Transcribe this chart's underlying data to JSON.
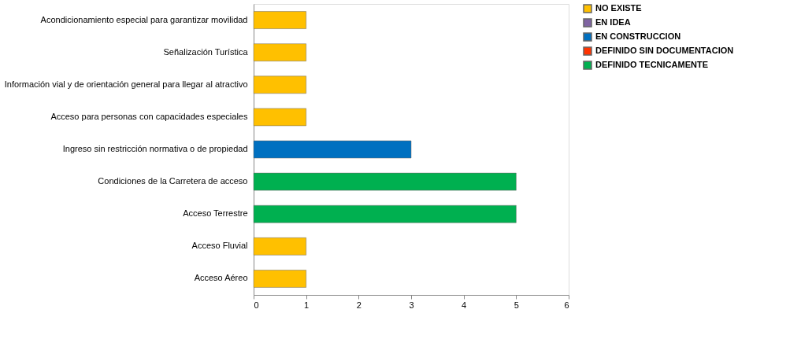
{
  "chart_data": {
    "type": "bar",
    "orientation": "horizontal",
    "categories": [
      "Acondicionamiento especial para garantizar movilidad",
      "Señalización Turística",
      "Información vial y de orientación general para llegar al atractivo",
      "Acceso para personas con capacidades especiales",
      "Ingreso sin restricción normativa o de propiedad",
      "Condiciones de la Carretera de acceso",
      "Acceso Terrestre",
      "Acceso Fluvial",
      "Acceso Aéreo"
    ],
    "series": [
      {
        "name": "NO EXISTE",
        "color": "#ffc000",
        "values": [
          1,
          1,
          1,
          1,
          null,
          null,
          null,
          1,
          1
        ]
      },
      {
        "name": "EN IDEA",
        "color": "#8064a2",
        "values": [
          null,
          null,
          null,
          null,
          null,
          null,
          null,
          null,
          null
        ]
      },
      {
        "name": "EN CONSTRUCCION",
        "color": "#0070c0",
        "values": [
          null,
          null,
          null,
          null,
          3,
          null,
          null,
          null,
          null
        ]
      },
      {
        "name": "DEFINIDO SIN DOCUMENTACION",
        "color": "#ff3300",
        "values": [
          null,
          null,
          null,
          null,
          null,
          null,
          null,
          null,
          null
        ]
      },
      {
        "name": "DEFINIDO TECNICAMENTE",
        "color": "#00b050",
        "values": [
          null,
          null,
          null,
          null,
          null,
          5,
          5,
          null,
          null
        ]
      }
    ],
    "xlim": [
      0,
      6
    ],
    "xticks": [
      0,
      1,
      2,
      3,
      4,
      5,
      6
    ],
    "grid": false,
    "legend": "right"
  }
}
